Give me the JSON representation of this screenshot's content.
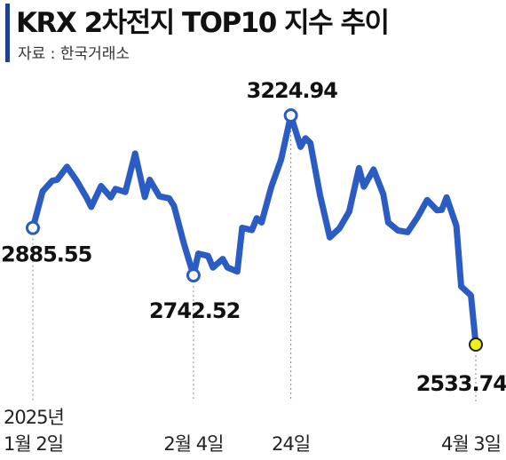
{
  "header": {
    "title": "KRX 2차전지 TOP10 지수 추이",
    "source": "자료 : 한국거래소"
  },
  "colors": {
    "line": "#2a5cc4",
    "title_bar": "#1f3f8f",
    "end_marker": "#f2ee1a"
  },
  "chart_data": {
    "type": "line",
    "title": "KRX 2차전지 TOP10 지수 추이",
    "x_tick_labels": [
      {
        "date": "2025-01-02",
        "lines": [
          "2025년",
          "1월 2일"
        ]
      },
      {
        "date": "2025-02-04",
        "lines": [
          "2월 4일"
        ]
      },
      {
        "date": "2025-02-24",
        "lines": [
          "24일"
        ]
      },
      {
        "date": "2025-04-03",
        "lines": [
          "4월 3일"
        ]
      }
    ],
    "ylim": [
      2500,
      3260
    ],
    "annotations": [
      {
        "label": "2885.55",
        "date": "2025-01-02",
        "value": 2885.55,
        "kind": "start"
      },
      {
        "label": "2742.52",
        "date": "2025-02-04",
        "value": 2742.52,
        "kind": "low"
      },
      {
        "label": "3224.94",
        "date": "2025-02-24",
        "value": 3224.94,
        "kind": "high"
      },
      {
        "label": "2533.74",
        "date": "2025-04-03",
        "value": 2533.74,
        "kind": "end"
      }
    ],
    "series": [
      {
        "points": [
          [
            "2025-01-02",
            2885.55
          ],
          [
            "2025-01-04",
            2996
          ],
          [
            "2025-01-06",
            3028
          ],
          [
            "2025-01-07",
            3031
          ],
          [
            "2025-01-09",
            3070
          ],
          [
            "2025-01-11",
            3028
          ],
          [
            "2025-01-13",
            2978
          ],
          [
            "2025-01-14",
            2949
          ],
          [
            "2025-01-16",
            3012
          ],
          [
            "2025-01-18",
            2978
          ],
          [
            "2025-01-19",
            3003
          ],
          [
            "2025-01-21",
            2994
          ],
          [
            "2025-01-23",
            3110
          ],
          [
            "2025-01-25",
            2979
          ],
          [
            "2025-01-26",
            3031
          ],
          [
            "2025-01-28",
            2981
          ],
          [
            "2025-01-30",
            2975
          ],
          [
            "2025-01-31",
            2952
          ],
          [
            "2025-02-02",
            2840
          ],
          [
            "2025-02-04",
            2742.52
          ],
          [
            "2025-02-05",
            2808
          ],
          [
            "2025-02-07",
            2801
          ],
          [
            "2025-02-08",
            2766
          ],
          [
            "2025-02-10",
            2792
          ],
          [
            "2025-02-11",
            2766
          ],
          [
            "2025-02-13",
            2754
          ],
          [
            "2025-02-14",
            2886
          ],
          [
            "2025-02-16",
            2879
          ],
          [
            "2025-02-17",
            2915
          ],
          [
            "2025-02-18",
            2902
          ],
          [
            "2025-02-20",
            3010
          ],
          [
            "2025-02-22",
            3092
          ],
          [
            "2025-02-24",
            3224.94
          ],
          [
            "2025-02-26",
            3130
          ],
          [
            "2025-02-27",
            3156
          ],
          [
            "2025-02-28",
            3142
          ],
          [
            "2025-03-02",
            2985
          ],
          [
            "2025-03-04",
            2857
          ],
          [
            "2025-03-06",
            2885
          ],
          [
            "2025-03-08",
            2935
          ],
          [
            "2025-03-10",
            3066
          ],
          [
            "2025-03-11",
            3010
          ],
          [
            "2025-03-13",
            3062
          ],
          [
            "2025-03-15",
            2987
          ],
          [
            "2025-03-16",
            2902
          ],
          [
            "2025-03-18",
            2878
          ],
          [
            "2025-03-20",
            2873
          ],
          [
            "2025-03-22",
            2917
          ],
          [
            "2025-03-24",
            2970
          ],
          [
            "2025-03-26",
            2939
          ],
          [
            "2025-03-27",
            2940
          ],
          [
            "2025-03-28",
            2978
          ],
          [
            "2025-03-30",
            2892
          ],
          [
            "2025-03-31",
            2709
          ],
          [
            "2025-04-02",
            2682
          ],
          [
            "2025-04-03",
            2533.74
          ]
        ]
      }
    ]
  }
}
